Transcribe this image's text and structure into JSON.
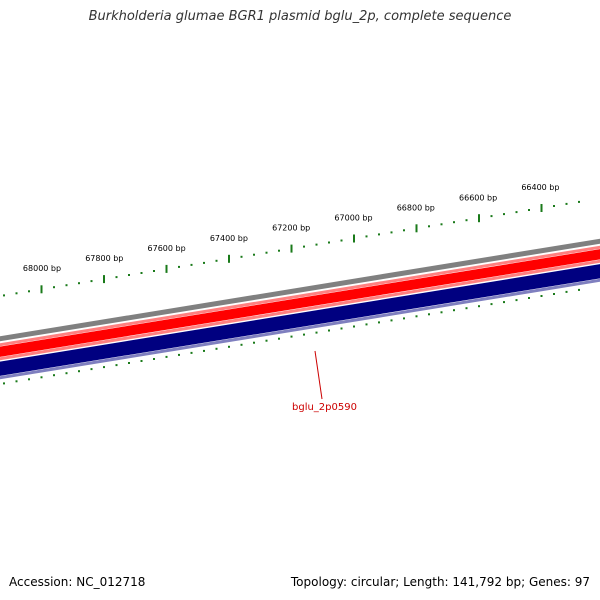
{
  "title": "Burkholderia glumae BGR1 plasmid bglu_2p, complete sequence",
  "accession_label": "Accession: NC_012718",
  "topology_label": "Topology: circular",
  "length_label": "Length: 141,792 bp",
  "genes_label": "Genes: 97",
  "separator": "; ",
  "colors": {
    "backbone": "#808080",
    "forward_cds": "#ff0000",
    "forward_cds_edge": "#ff8080",
    "reverse_cds": "#000080",
    "reverse_cds_edge": "#7f7fbf",
    "ticks": "#1a7a1a",
    "gene_label": "#cc0000"
  },
  "outer_ticks": [
    {
      "bp": 68000,
      "label": "68000 bp"
    },
    {
      "bp": 67800,
      "label": "67800 bp"
    },
    {
      "bp": 67600,
      "label": "67600 bp"
    },
    {
      "bp": 67400,
      "label": "67400 bp"
    },
    {
      "bp": 67200,
      "label": "67200 bp"
    },
    {
      "bp": 67000,
      "label": "67000 bp"
    },
    {
      "bp": 66800,
      "label": "66800 bp"
    },
    {
      "bp": 66600,
      "label": "66600 bp"
    },
    {
      "bp": 66400,
      "label": "66400 bp"
    }
  ],
  "genes": [
    {
      "name": "bglu_2p0590",
      "strand": "reverse"
    }
  ]
}
